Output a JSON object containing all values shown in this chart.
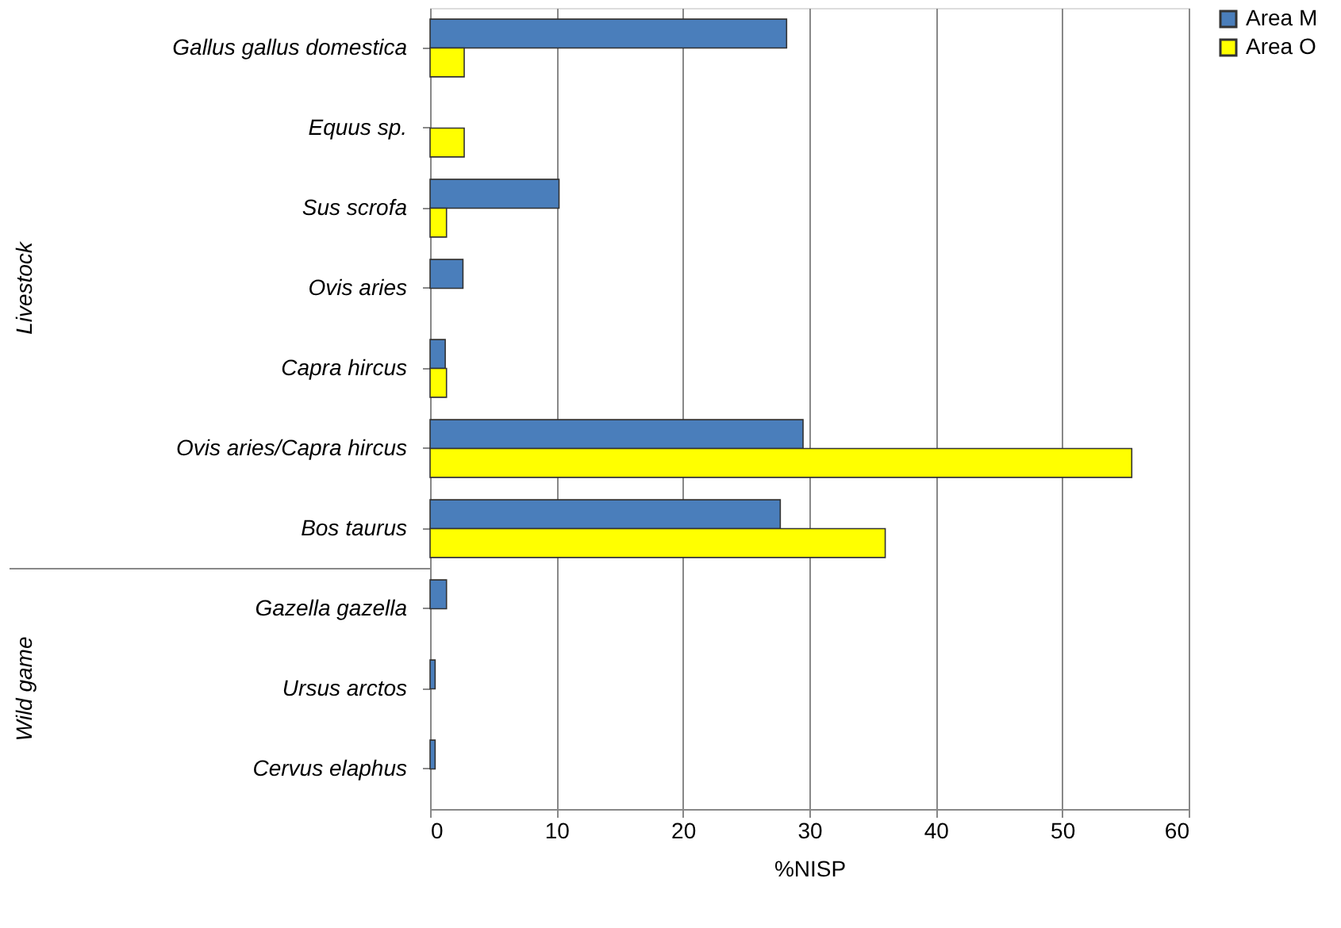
{
  "chart_data": {
    "type": "bar",
    "orientation": "horizontal",
    "xlabel": "%NISP",
    "categories": [
      "Gallus gallus domestica",
      "Equus sp.",
      "Sus scrofa",
      "Ovis aries",
      "Capra hircus",
      "Ovis aries/Capra hircus",
      "Bos taurus",
      "Gazella gazella",
      "Ursus arctos",
      "Cervus elaphus"
    ],
    "series": [
      {
        "name": "Area M",
        "color": "#4a7ebb",
        "values": [
          28.2,
          null,
          10.2,
          2.6,
          1.2,
          29.5,
          27.7,
          1.3,
          0.4,
          0.4
        ]
      },
      {
        "name": "Area O",
        "color": "#ffff00",
        "values": [
          2.7,
          2.7,
          1.3,
          null,
          1.3,
          55.5,
          36.0,
          null,
          null,
          null
        ]
      }
    ],
    "xlim": [
      0,
      60
    ],
    "xticks": [
      0,
      10,
      20,
      30,
      40,
      50,
      60
    ],
    "grid": "x",
    "legend": "right",
    "annotations": [
      "Livestock",
      "Wild game"
    ]
  }
}
